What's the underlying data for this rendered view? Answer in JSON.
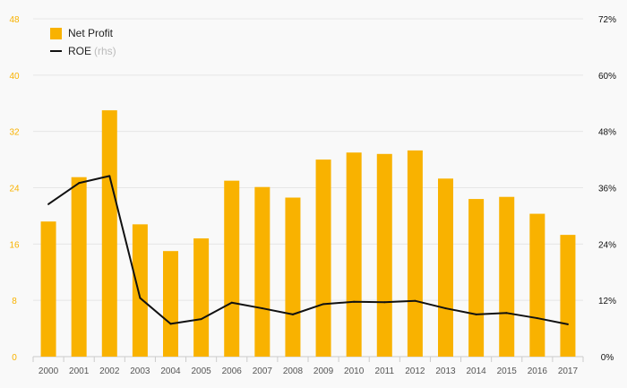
{
  "chart_data": {
    "type": "bar",
    "categories": [
      "2000",
      "2001",
      "2002",
      "2003",
      "2004",
      "2005",
      "2006",
      "2007",
      "2008",
      "2009",
      "2010",
      "2011",
      "2012",
      "2013",
      "2014",
      "2015",
      "2016",
      "2017"
    ],
    "series": [
      {
        "name": "Net Profit",
        "type": "bar",
        "axis": "left",
        "color": "#f9b200",
        "values": [
          19.2,
          25.5,
          35.0,
          18.8,
          15.0,
          16.8,
          25.0,
          24.1,
          22.6,
          28.0,
          29.0,
          28.8,
          29.3,
          25.3,
          22.4,
          22.7,
          20.3,
          17.3
        ]
      },
      {
        "name": "ROE",
        "type": "line",
        "axis": "right",
        "color": "#111111",
        "values": [
          32.5,
          37.0,
          38.5,
          12.5,
          7.0,
          8.0,
          11.5,
          10.3,
          9.0,
          11.2,
          11.7,
          11.6,
          11.9,
          10.3,
          9.0,
          9.3,
          8.2,
          6.9
        ]
      }
    ],
    "y_left": {
      "ticks": [
        "0",
        "8",
        "16",
        "24",
        "32",
        "40",
        "48"
      ],
      "ylim": [
        0,
        48
      ],
      "color": "#f9b200"
    },
    "y_right": {
      "ticks": [
        "0%",
        "12%",
        "24%",
        "36%",
        "48%",
        "60%",
        "72%"
      ],
      "ylim": [
        0,
        72
      ]
    },
    "legend": {
      "bar_label": "Net Profit",
      "line_label": "ROE",
      "line_suffix": "(rhs)",
      "position": "top-left"
    },
    "grid": true
  }
}
